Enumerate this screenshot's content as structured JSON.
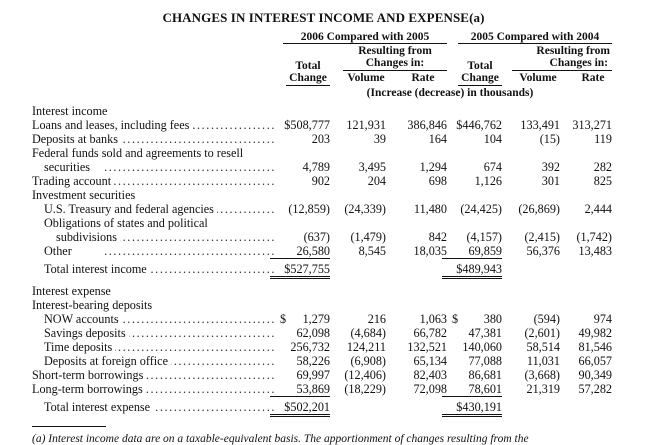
{
  "title": "CHANGES IN INTEREST INCOME AND EXPENSE(a)",
  "groups": {
    "g2006": "2006 Compared with 2005",
    "g2005": "2005 Compared with 2004"
  },
  "headers": {
    "total_line1": "Total",
    "total_line2": "Change",
    "resulting_line1": "Resulting from",
    "resulting_line2": "Changes in:",
    "volume": "Volume",
    "rate": "Rate",
    "units_note": "(Increase (decrease) in thousands)"
  },
  "rows": [
    {
      "label": "Interest income",
      "indent": 0,
      "dots": false,
      "vals": [
        "",
        "",
        "",
        "",
        "",
        ""
      ]
    },
    {
      "label": "Loans and leases, including fees",
      "indent": 0,
      "dots": true,
      "vals": [
        "$508,777",
        "121,931",
        "386,846",
        "$446,762",
        "133,491",
        "313,271"
      ]
    },
    {
      "label": "Deposits at banks",
      "indent": 0,
      "dots": true,
      "vals": [
        "203",
        "39",
        "164",
        "104",
        "(15)",
        "119"
      ]
    },
    {
      "label": "Federal funds sold and agreements to resell",
      "indent": 0,
      "dots": false,
      "vals": [
        "",
        "",
        "",
        "",
        "",
        ""
      ]
    },
    {
      "label": "securities",
      "indent": 1,
      "dots": true,
      "vals": [
        "4,789",
        "3,495",
        "1,294",
        "674",
        "392",
        "282"
      ]
    },
    {
      "label": "Trading account",
      "indent": 0,
      "dots": true,
      "vals": [
        "902",
        "204",
        "698",
        "1,126",
        "301",
        "825"
      ]
    },
    {
      "label": "Investment securities",
      "indent": 0,
      "dots": false,
      "vals": [
        "",
        "",
        "",
        "",
        "",
        ""
      ]
    },
    {
      "label": "U.S. Treasury and federal agencies",
      "indent": 1,
      "dots": true,
      "vals": [
        "(12,859)",
        "(24,339)",
        "11,480",
        "(24,425)",
        "(26,869)",
        "2,444"
      ]
    },
    {
      "label": "Obligations of states and political",
      "indent": 1,
      "dots": false,
      "vals": [
        "",
        "",
        "",
        "",
        "",
        ""
      ]
    },
    {
      "label": "subdivisions",
      "indent": 2,
      "dots": true,
      "vals": [
        "(637)",
        "(1,479)",
        "842",
        "(4,157)",
        "(2,415)",
        "(1,742)"
      ]
    },
    {
      "label": "Other",
      "indent": 1,
      "dots": true,
      "vals": [
        "26,580",
        "8,545",
        "18,035",
        "69,859",
        "56,376",
        "13,483"
      ]
    },
    {
      "label": "Total interest income",
      "indent": 1,
      "dots": true,
      "vals": [
        "$527,755",
        "",
        "",
        "$489,943",
        "",
        ""
      ]
    },
    {
      "label": "Interest expense",
      "indent": 0,
      "dots": false,
      "vals": [
        "",
        "",
        "",
        "",
        "",
        ""
      ]
    },
    {
      "label": "Interest-bearing deposits",
      "indent": 0,
      "dots": false,
      "vals": [
        "",
        "",
        "",
        "",
        "",
        ""
      ]
    },
    {
      "label": "NOW accounts",
      "indent": 1,
      "dots": true,
      "vals": [
        "$ 1,279",
        "216",
        "1,063",
        "$ 380",
        "(594)",
        "974"
      ]
    },
    {
      "label": "Savings deposits",
      "indent": 1,
      "dots": true,
      "vals": [
        "62,098",
        "(4,684)",
        "66,782",
        "47,381",
        "(2,601)",
        "49,982"
      ]
    },
    {
      "label": "Time deposits",
      "indent": 1,
      "dots": true,
      "vals": [
        "256,732",
        "124,211",
        "132,521",
        "140,060",
        "58,514",
        "81,546"
      ]
    },
    {
      "label": "Deposits at foreign office",
      "indent": 1,
      "dots": true,
      "vals": [
        "58,226",
        "(6,908)",
        "65,134",
        "77,088",
        "11,031",
        "66,057"
      ]
    },
    {
      "label": "Short-term borrowings",
      "indent": 0,
      "dots": true,
      "vals": [
        "69,997",
        "(12,406)",
        "82,403",
        "86,681",
        "(3,668)",
        "90,349"
      ]
    },
    {
      "label": "Long-term borrowings",
      "indent": 0,
      "dots": true,
      "vals": [
        "53,869",
        "(18,229)",
        "72,098",
        "78,601",
        "21,319",
        "57,282"
      ]
    },
    {
      "label": "Total interest expense",
      "indent": 1,
      "dots": true,
      "vals": [
        "$502,201",
        "",
        "",
        "$430,191",
        "",
        ""
      ]
    }
  ],
  "footnote": "(a) Interest income data are on a taxable-equivalent basis. The apportionment of changes resulting from the"
}
